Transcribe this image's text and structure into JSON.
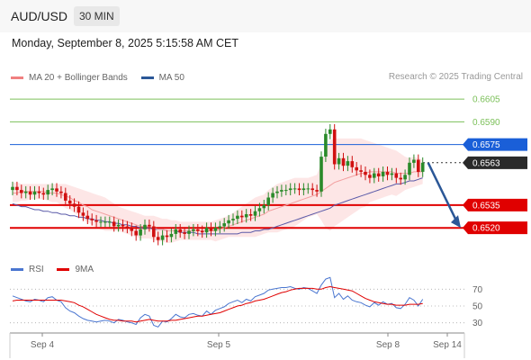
{
  "header": {
    "symbol": "AUD/USD",
    "interval": "30 MIN"
  },
  "datetime": "Monday, September 8, 2025 5:15:58 AM CET",
  "credit": "Research © 2025 Trading Central",
  "legend": [
    {
      "label": "MA 20 + Bollinger Bands",
      "color": "#f08080"
    },
    {
      "label": "MA 50",
      "color": "#2b5797"
    }
  ],
  "rsi_legend": [
    {
      "label": "RSI",
      "color": "#4a76d0"
    },
    {
      "label": "9MA",
      "color": "#e00000"
    }
  ],
  "colors": {
    "up": "#2a8a2a",
    "down": "#d01010",
    "resistance": "#1a5fd8",
    "support": "#e00000",
    "target": "#7cc05a",
    "forecast_arrow": "#2b5797"
  },
  "chart_data": {
    "type": "candlestick",
    "instrument": "AUD/USD",
    "timeframe": "30 MIN",
    "x_ticks": [
      "Sep 4",
      "Sep 5",
      "Sep 8",
      "Sep 14"
    ],
    "ylim": [
      0.651,
      0.6614
    ],
    "levels": [
      {
        "value": 0.6605,
        "label": "0.6605",
        "role": "target"
      },
      {
        "value": 0.659,
        "label": "0.6590",
        "role": "target"
      },
      {
        "value": 0.6575,
        "label": "0.6575",
        "role": "resistance"
      },
      {
        "value": 0.6563,
        "label": "0.6563",
        "role": "last"
      },
      {
        "value": 0.6535,
        "label": "0.6535",
        "role": "support"
      },
      {
        "value": 0.652,
        "label": "0.6520",
        "role": "support"
      }
    ],
    "close": [
      0.6547,
      0.6545,
      0.6543,
      0.6544,
      0.6542,
      0.6544,
      0.6543,
      0.6542,
      0.6545,
      0.6546,
      0.6544,
      0.6543,
      0.6538,
      0.6536,
      0.6534,
      0.653,
      0.6528,
      0.6526,
      0.6525,
      0.6524,
      0.6524,
      0.6524,
      0.6524,
      0.6521,
      0.6522,
      0.6521,
      0.652,
      0.6518,
      0.6515,
      0.6519,
      0.6522,
      0.6521,
      0.6514,
      0.6512,
      0.6515,
      0.6514,
      0.6516,
      0.6519,
      0.6517,
      0.6516,
      0.6518,
      0.6519,
      0.6518,
      0.6517,
      0.652,
      0.6518,
      0.652,
      0.6521,
      0.6523,
      0.6525,
      0.6526,
      0.6528,
      0.6527,
      0.6529,
      0.6528,
      0.6531,
      0.6533,
      0.6535,
      0.654,
      0.6543,
      0.6544,
      0.6545,
      0.6545,
      0.6546,
      0.6546,
      0.6545,
      0.6546,
      0.6546,
      0.6545,
      0.6544,
      0.6567,
      0.6582,
      0.6585,
      0.6562,
      0.6566,
      0.6561,
      0.6564,
      0.656,
      0.6558,
      0.6557,
      0.6555,
      0.6553,
      0.6556,
      0.6554,
      0.6557,
      0.6555,
      0.6556,
      0.6553,
      0.6552,
      0.6555,
      0.6563,
      0.6565,
      0.6557,
      0.6563
    ],
    "ma20": [
      0.6543,
      0.6543,
      0.6544,
      0.6544,
      0.6544,
      0.6544,
      0.6544,
      0.6544,
      0.6543,
      0.6543,
      0.6543,
      0.6542,
      0.6541,
      0.654,
      0.6538,
      0.6537,
      0.6535,
      0.6534,
      0.6532,
      0.6531,
      0.653,
      0.6529,
      0.6528,
      0.6527,
      0.6526,
      0.6525,
      0.6524,
      0.6523,
      0.6522,
      0.6521,
      0.6521,
      0.6521,
      0.652,
      0.6519,
      0.6519,
      0.6518,
      0.6518,
      0.6518,
      0.6518,
      0.6518,
      0.6518,
      0.6518,
      0.6518,
      0.6518,
      0.6518,
      0.6518,
      0.6518,
      0.6519,
      0.652,
      0.6521,
      0.6522,
      0.6523,
      0.6524,
      0.6525,
      0.6526,
      0.6527,
      0.6528,
      0.6529,
      0.6531,
      0.6532,
      0.6533,
      0.6534,
      0.6535,
      0.6536,
      0.6537,
      0.6538,
      0.6539,
      0.654,
      0.6541,
      0.6542,
      0.6544,
      0.6546,
      0.6548,
      0.655,
      0.6551,
      0.6552,
      0.6553,
      0.6554,
      0.6555,
      0.6556,
      0.6556,
      0.6557,
      0.6557,
      0.6557,
      0.6557,
      0.6557,
      0.6557,
      0.6556,
      0.6556,
      0.6556,
      0.6556,
      0.6557,
      0.6557,
      0.6557
    ],
    "bb_upper": [
      0.655,
      0.655,
      0.6549,
      0.6549,
      0.6549,
      0.6549,
      0.6549,
      0.6549,
      0.6549,
      0.6549,
      0.6549,
      0.6549,
      0.6549,
      0.6548,
      0.6547,
      0.6546,
      0.6545,
      0.6544,
      0.6543,
      0.6542,
      0.6541,
      0.654,
      0.6538,
      0.6536,
      0.6534,
      0.6533,
      0.6532,
      0.6531,
      0.653,
      0.6529,
      0.6528,
      0.6528,
      0.6528,
      0.6527,
      0.6526,
      0.6526,
      0.6525,
      0.6525,
      0.6524,
      0.6524,
      0.6524,
      0.6524,
      0.6524,
      0.6524,
      0.6524,
      0.6524,
      0.6525,
      0.6526,
      0.6527,
      0.6528,
      0.653,
      0.6532,
      0.6534,
      0.6536,
      0.6538,
      0.654,
      0.6541,
      0.6542,
      0.6545,
      0.6547,
      0.6549,
      0.655,
      0.6551,
      0.6552,
      0.6553,
      0.6553,
      0.6553,
      0.6553,
      0.6554,
      0.6555,
      0.6563,
      0.6572,
      0.6578,
      0.6579,
      0.6579,
      0.6579,
      0.6579,
      0.6579,
      0.6579,
      0.6579,
      0.6578,
      0.6577,
      0.6576,
      0.6575,
      0.6574,
      0.6573,
      0.6572,
      0.6571,
      0.6569,
      0.6567,
      0.6566,
      0.6567,
      0.6566,
      0.6565
    ],
    "bb_lower": [
      0.6537,
      0.6537,
      0.6538,
      0.6538,
      0.6539,
      0.6539,
      0.6539,
      0.6539,
      0.6538,
      0.6537,
      0.6537,
      0.6535,
      0.6533,
      0.6532,
      0.653,
      0.6528,
      0.6525,
      0.6524,
      0.6522,
      0.652,
      0.6519,
      0.6518,
      0.6518,
      0.6518,
      0.6518,
      0.6517,
      0.6516,
      0.6515,
      0.6514,
      0.6513,
      0.6513,
      0.6513,
      0.6512,
      0.6511,
      0.6511,
      0.651,
      0.651,
      0.6511,
      0.6512,
      0.6512,
      0.6512,
      0.6512,
      0.6512,
      0.6512,
      0.6512,
      0.6512,
      0.6511,
      0.6512,
      0.6513,
      0.6514,
      0.6514,
      0.6514,
      0.6514,
      0.6514,
      0.6514,
      0.6514,
      0.6515,
      0.6516,
      0.6517,
      0.6517,
      0.6517,
      0.6518,
      0.6519,
      0.652,
      0.6521,
      0.6523,
      0.6525,
      0.6527,
      0.6528,
      0.6529,
      0.6525,
      0.652,
      0.6518,
      0.6521,
      0.6523,
      0.6525,
      0.6527,
      0.6529,
      0.6531,
      0.6533,
      0.6534,
      0.6537,
      0.6538,
      0.6539,
      0.654,
      0.6541,
      0.6542,
      0.6541,
      0.6543,
      0.6545,
      0.6546,
      0.6547,
      0.6548,
      0.6549
    ],
    "ma50": [
      0.6536,
      0.6535,
      0.6534,
      0.6534,
      0.6533,
      0.6532,
      0.6532,
      0.6531,
      0.6531,
      0.653,
      0.653,
      0.6529,
      0.6529,
      0.6528,
      0.6528,
      0.6527,
      0.6527,
      0.6526,
      0.6526,
      0.6525,
      0.6525,
      0.6524,
      0.6524,
      0.6523,
      0.6523,
      0.6522,
      0.6522,
      0.6521,
      0.6521,
      0.652,
      0.652,
      0.652,
      0.6519,
      0.6519,
      0.6519,
      0.6518,
      0.6518,
      0.6518,
      0.6517,
      0.6517,
      0.6517,
      0.6517,
      0.6516,
      0.6516,
      0.6516,
      0.6516,
      0.6516,
      0.6516,
      0.6516,
      0.6516,
      0.6516,
      0.6516,
      0.6517,
      0.6517,
      0.6517,
      0.6518,
      0.6518,
      0.6519,
      0.6519,
      0.652,
      0.6521,
      0.6522,
      0.6523,
      0.6524,
      0.6525,
      0.6526,
      0.6527,
      0.6528,
      0.6529,
      0.653,
      0.6531,
      0.6532,
      0.6533,
      0.6535,
      0.6536,
      0.6537,
      0.6538,
      0.6539,
      0.654,
      0.6541,
      0.6542,
      0.6543,
      0.6544,
      0.6545,
      0.6546,
      0.6547,
      0.6548,
      0.6549,
      0.6549,
      0.655,
      0.6551,
      0.6551,
      0.6552,
      0.6553
    ],
    "forecast": {
      "from": 0.6563,
      "to": 0.652
    },
    "rsi": {
      "ylim": [
        20,
        80
      ],
      "ticks": [
        70,
        50,
        30
      ],
      "rsi": [
        62,
        60,
        58,
        56,
        55,
        58,
        57,
        55,
        60,
        61,
        57,
        55,
        48,
        44,
        42,
        38,
        35,
        33,
        32,
        31,
        32,
        33,
        32,
        30,
        34,
        33,
        31,
        30,
        28,
        36,
        40,
        38,
        27,
        25,
        32,
        31,
        35,
        40,
        37,
        36,
        40,
        41,
        39,
        38,
        44,
        40,
        45,
        47,
        49,
        53,
        55,
        57,
        54,
        58,
        56,
        61,
        63,
        65,
        69,
        70,
        71,
        72,
        72,
        73,
        71,
        70,
        72,
        71,
        68,
        65,
        75,
        82,
        84,
        60,
        65,
        58,
        62,
        57,
        55,
        54,
        51,
        49,
        54,
        51,
        55,
        52,
        53,
        48,
        47,
        52,
        60,
        57,
        50,
        58
      ],
      "ma9": [
        56,
        57,
        57,
        57,
        57,
        57,
        57,
        57,
        57,
        57,
        57,
        57,
        56,
        55,
        54,
        51,
        49,
        46,
        43,
        40,
        38,
        36,
        34,
        33,
        33,
        32,
        32,
        32,
        31,
        32,
        33,
        34,
        33,
        32,
        32,
        32,
        33,
        33,
        34,
        35,
        36,
        37,
        38,
        38,
        39,
        40,
        41,
        42,
        44,
        46,
        48,
        50,
        51,
        53,
        54,
        56,
        57,
        58,
        60,
        62,
        64,
        66,
        67,
        69,
        70,
        71,
        71,
        71,
        71,
        70,
        70,
        72,
        73,
        72,
        71,
        70,
        69,
        68,
        65,
        62,
        59,
        57,
        55,
        54,
        53,
        52,
        52,
        51,
        51,
        51,
        52,
        52,
        52,
        53
      ]
    }
  }
}
